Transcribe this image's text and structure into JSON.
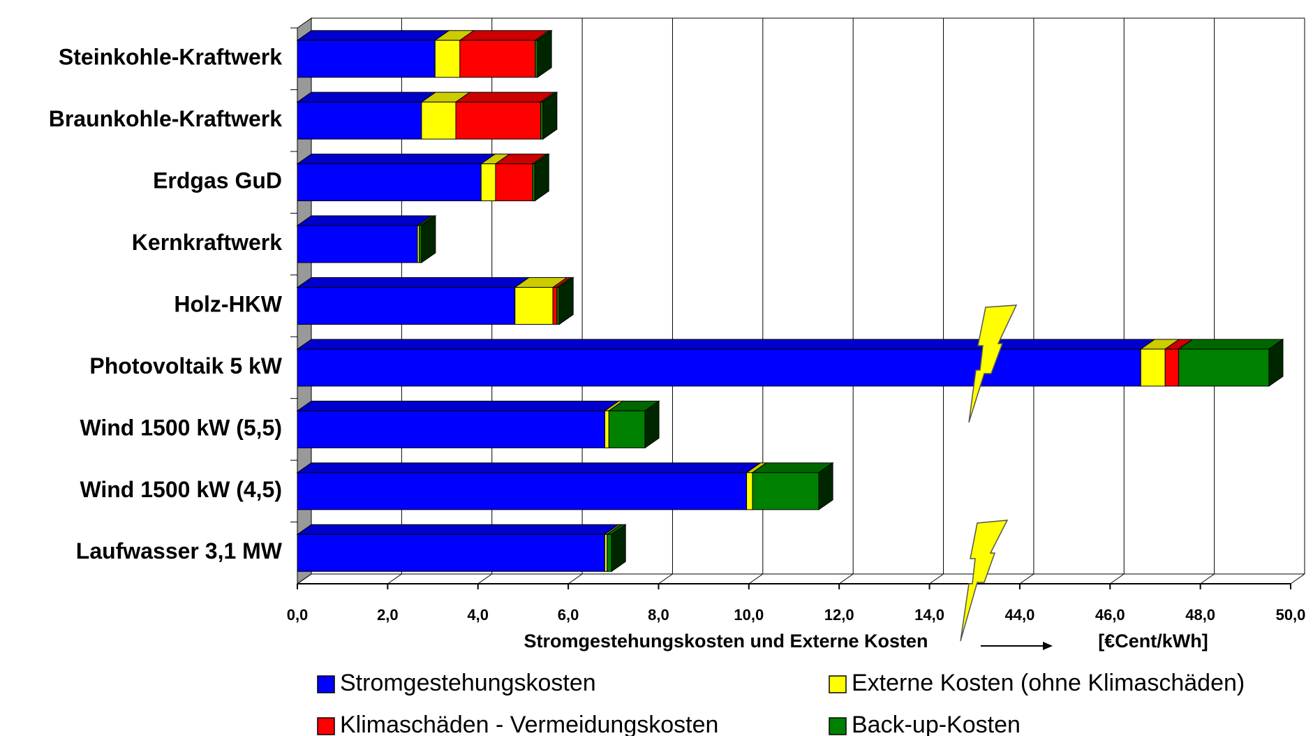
{
  "chart_data": {
    "type": "bar",
    "orientation": "horizontal",
    "stacked": true,
    "categories": [
      "Steinkohle-Kraftwerk",
      "Braunkohle-Kraftwerk",
      "Erdgas GuD",
      "Kernkraftwerk",
      "Holz-HKW",
      "Photovoltaik 5 kW",
      "Wind 1500 kW (5,5)",
      "Wind 1500 kW (4,5)",
      "Laufwasser  3,1 MW"
    ],
    "series": [
      {
        "name": "Stromgestehungskosten",
        "color": "#0000ff",
        "values": [
          3.05,
          2.75,
          4.07,
          2.66,
          4.82,
          46.68,
          6.81,
          9.95,
          6.81
        ]
      },
      {
        "name": "Externe Kosten (ohne Klimaschäden)",
        "color": "#ffff00",
        "values": [
          0.55,
          0.76,
          0.32,
          0.04,
          0.84,
          0.54,
          0.09,
          0.13,
          0.05
        ]
      },
      {
        "name": "Klimaschäden - Vermeidungskosten",
        "color": "#ff0000",
        "values": [
          1.67,
          1.88,
          0.82,
          0,
          0.09,
          0.3,
          0,
          0,
          0
        ]
      },
      {
        "name": "Back-up-Kosten",
        "color": "#008000",
        "values": [
          0.05,
          0.05,
          0.05,
          0.05,
          0.05,
          2.0,
          0.8,
          1.47,
          0.1
        ]
      }
    ],
    "xlim": [
      0,
      50
    ],
    "xticks": [
      {
        "value": 0,
        "label": "0,0"
      },
      {
        "value": 2,
        "label": "2,0"
      },
      {
        "value": 4,
        "label": "4,0"
      },
      {
        "value": 6,
        "label": "6,0"
      },
      {
        "value": 8,
        "label": "8,0"
      },
      {
        "value": 10,
        "label": "10,0"
      },
      {
        "value": 12,
        "label": "12,0"
      },
      {
        "value": 14,
        "label": "14,0"
      },
      {
        "value": 44,
        "label": "44,0"
      },
      {
        "value": 46,
        "label": "46,0"
      },
      {
        "value": 48,
        "label": "48,0"
      },
      {
        "value": 50,
        "label": "50,0"
      }
    ],
    "xlabel": "Stromgestehungskosten und Externe Kosten",
    "xunit": "[€Cent/kWh]",
    "grid": true
  }
}
